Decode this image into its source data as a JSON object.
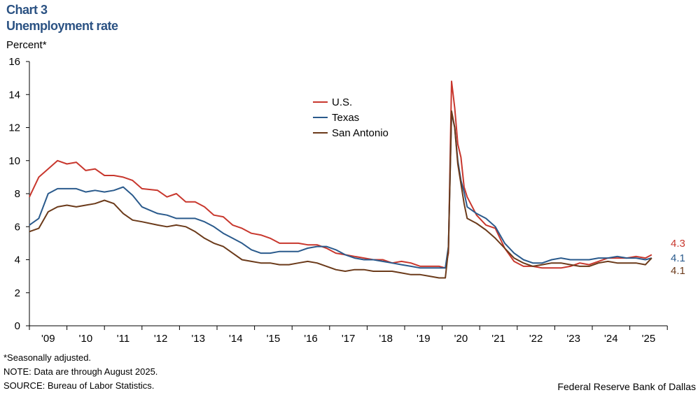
{
  "title": "Chart 3",
  "subtitle": "Unemployment rate",
  "footnotes": [
    "*Seasonally adjusted.",
    "NOTE: Data are through August 2025.",
    "SOURCE: Bureau of Labor Statistics."
  ],
  "credit": "Federal Reserve Bank of Dallas",
  "chart_data": {
    "type": "line",
    "title": "Unemployment rate",
    "ylabel": "Percent*",
    "xlabel": "",
    "ylim": [
      0,
      16
    ],
    "yticks": [
      0,
      2,
      4,
      6,
      8,
      10,
      12,
      14,
      16
    ],
    "xlim": [
      "2009-01",
      "2025-12"
    ],
    "xtick_labels": [
      "'09",
      "'10",
      "'11",
      "'12",
      "'13",
      "'14",
      "'15",
      "'16",
      "'17",
      "'18",
      "'19",
      "'20",
      "'21",
      "'22",
      "'23",
      "'24",
      "'25"
    ],
    "grid": false,
    "legend": "top-center",
    "end_labels": [
      {
        "text": "4.3",
        "color": "#c8372d"
      },
      {
        "text": "4.1",
        "color": "#2a5a8c"
      },
      {
        "text": "4.1",
        "color": "#6b3a1a"
      }
    ],
    "x": [
      "2009-01",
      "2009-04",
      "2009-07",
      "2009-10",
      "2010-01",
      "2010-04",
      "2010-07",
      "2010-10",
      "2011-01",
      "2011-04",
      "2011-07",
      "2011-10",
      "2012-01",
      "2012-06",
      "2012-09",
      "2012-12",
      "2013-03",
      "2013-06",
      "2013-09",
      "2013-12",
      "2014-03",
      "2014-06",
      "2014-09",
      "2014-12",
      "2015-03",
      "2015-06",
      "2015-09",
      "2015-12",
      "2016-03",
      "2016-06",
      "2016-09",
      "2016-12",
      "2017-03",
      "2017-06",
      "2017-09",
      "2017-12",
      "2018-03",
      "2018-06",
      "2018-09",
      "2018-12",
      "2019-03",
      "2019-06",
      "2019-09",
      "2019-12",
      "2020-02",
      "2020-03",
      "2020-04",
      "2020-05",
      "2020-06",
      "2020-07",
      "2020-08",
      "2020-09",
      "2020-12",
      "2021-03",
      "2021-06",
      "2021-09",
      "2021-12",
      "2022-03",
      "2022-06",
      "2022-09",
      "2022-12",
      "2023-03",
      "2023-06",
      "2023-09",
      "2023-12",
      "2024-03",
      "2024-06",
      "2024-09",
      "2024-12",
      "2025-03",
      "2025-06",
      "2025-08"
    ],
    "series": [
      {
        "name": "U.S.",
        "color": "#c8372d",
        "values": [
          7.8,
          9.0,
          9.5,
          10.0,
          9.8,
          9.9,
          9.4,
          9.5,
          9.1,
          9.1,
          9.0,
          8.8,
          8.3,
          8.2,
          7.8,
          8.0,
          7.5,
          7.5,
          7.2,
          6.7,
          6.6,
          6.1,
          5.9,
          5.6,
          5.5,
          5.3,
          5.0,
          5.0,
          5.0,
          4.9,
          4.9,
          4.7,
          4.4,
          4.3,
          4.2,
          4.1,
          4.0,
          4.0,
          3.8,
          3.9,
          3.8,
          3.6,
          3.6,
          3.6,
          3.5,
          4.4,
          14.8,
          13.2,
          11.0,
          10.2,
          8.4,
          7.8,
          6.7,
          6.1,
          5.9,
          4.7,
          3.9,
          3.6,
          3.6,
          3.5,
          3.5,
          3.5,
          3.6,
          3.8,
          3.7,
          3.9,
          4.1,
          4.1,
          4.1,
          4.2,
          4.1,
          4.3
        ]
      },
      {
        "name": "Texas",
        "color": "#2a5a8c",
        "values": [
          6.1,
          6.5,
          8.0,
          8.3,
          8.3,
          8.3,
          8.1,
          8.2,
          8.1,
          8.2,
          8.4,
          7.9,
          7.2,
          6.8,
          6.7,
          6.5,
          6.5,
          6.5,
          6.3,
          6.0,
          5.6,
          5.3,
          5.0,
          4.6,
          4.4,
          4.4,
          4.5,
          4.5,
          4.5,
          4.7,
          4.8,
          4.8,
          4.6,
          4.3,
          4.1,
          4.0,
          4.0,
          3.9,
          3.8,
          3.7,
          3.6,
          3.5,
          3.5,
          3.5,
          3.5,
          4.8,
          12.9,
          12.0,
          10.0,
          8.8,
          8.1,
          7.2,
          6.8,
          6.5,
          6.0,
          5.0,
          4.4,
          4.0,
          3.8,
          3.8,
          4.0,
          4.1,
          4.0,
          4.0,
          4.0,
          4.1,
          4.1,
          4.2,
          4.1,
          4.1,
          4.0,
          4.1
        ]
      },
      {
        "name": "San Antonio",
        "color": "#6b3a1a",
        "values": [
          5.7,
          5.9,
          6.9,
          7.2,
          7.3,
          7.2,
          7.3,
          7.4,
          7.6,
          7.4,
          6.8,
          6.4,
          6.3,
          6.1,
          6.0,
          6.1,
          6.0,
          5.7,
          5.3,
          5.0,
          4.8,
          4.4,
          4.0,
          3.9,
          3.8,
          3.8,
          3.7,
          3.7,
          3.8,
          3.9,
          3.8,
          3.6,
          3.4,
          3.3,
          3.4,
          3.4,
          3.3,
          3.3,
          3.3,
          3.2,
          3.1,
          3.1,
          3.0,
          2.9,
          2.9,
          4.6,
          13.0,
          12.0,
          9.8,
          8.6,
          7.4,
          6.5,
          6.2,
          5.8,
          5.3,
          4.7,
          4.1,
          3.8,
          3.6,
          3.7,
          3.8,
          3.8,
          3.7,
          3.6,
          3.6,
          3.8,
          3.9,
          3.8,
          3.8,
          3.8,
          3.7,
          4.1
        ]
      }
    ]
  }
}
